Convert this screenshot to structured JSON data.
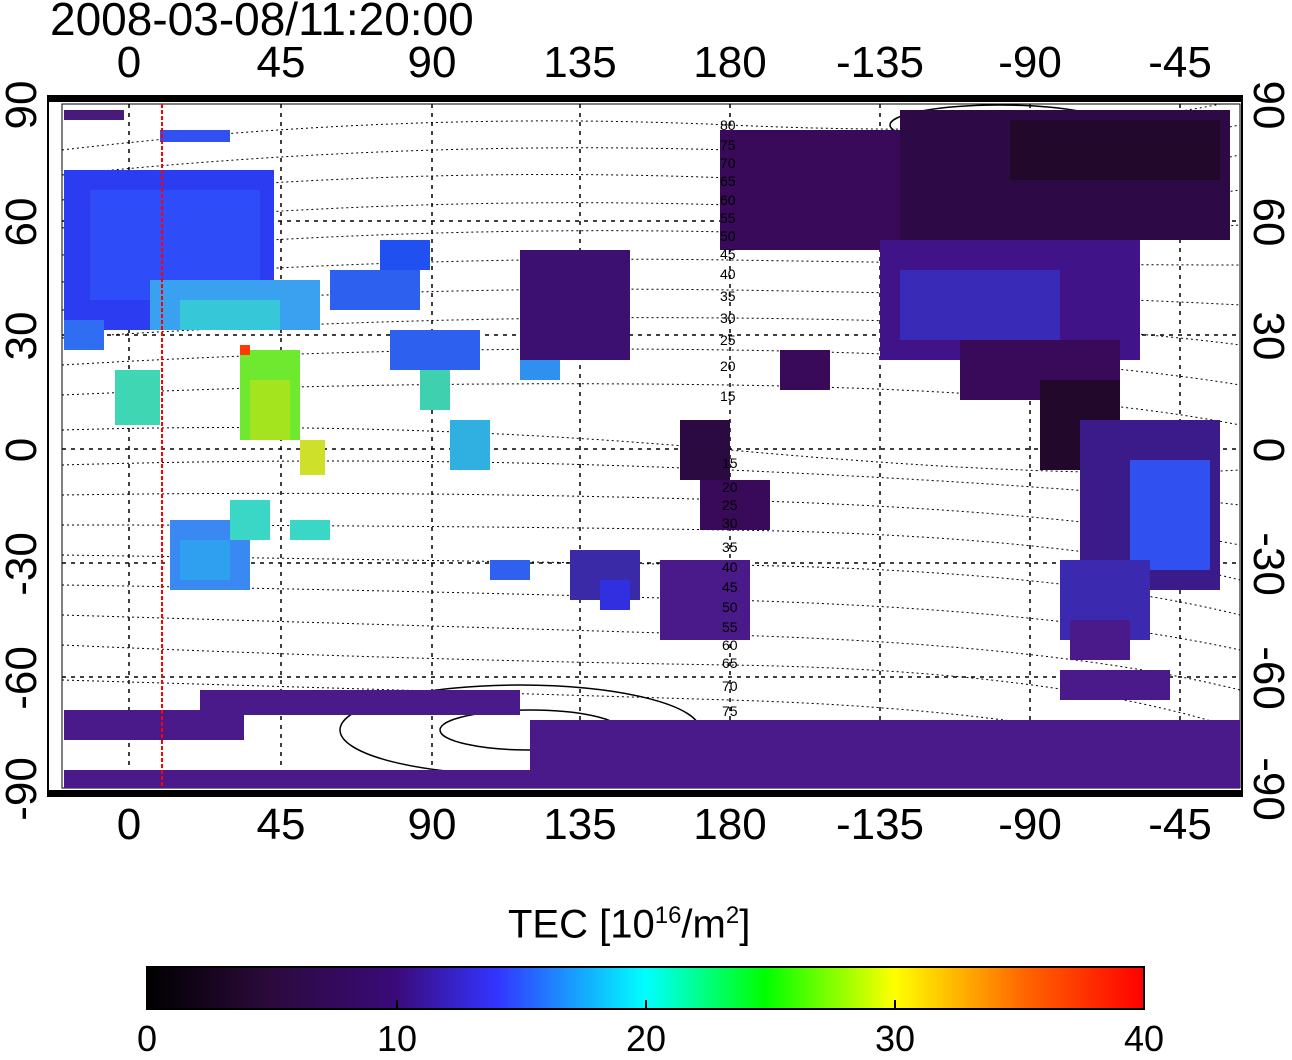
{
  "title": "2008-03-08/11:20:00",
  "map": {
    "x_ticks": [
      "0",
      "45",
      "90",
      "135",
      "180",
      "-135",
      "-90",
      "-45"
    ],
    "y_ticks": [
      "90",
      "60",
      "30",
      "0",
      "-30",
      "-60",
      "-90"
    ],
    "mlat_labels": [
      "80",
      "75",
      "70",
      "65",
      "60",
      "55",
      "50",
      "45",
      "40",
      "35",
      "30",
      "25",
      "20",
      "15",
      "15",
      "20",
      "25",
      "30",
      "35",
      "40",
      "45",
      "50",
      "55",
      "60",
      "65",
      "70",
      "75"
    ],
    "terminator_longitude_deg": 10
  },
  "colorbar": {
    "title_prefix": "TEC  [10",
    "title_exp": "16",
    "title_mid": "/m",
    "title_exp2": "2",
    "title_suffix": "]",
    "ticks": [
      "0",
      "10",
      "20",
      "30",
      "40"
    ],
    "range": [
      0,
      40
    ]
  },
  "colors": {
    "low": "#1a0010",
    "c1": "#3a0a5a",
    "c2": "#3333ff",
    "c3": "#00ffff",
    "c4": "#00ff00",
    "c5": "#ffff00",
    "c6": "#ff6600",
    "high": "#ff0000",
    "terminator": "#ff0000"
  }
}
